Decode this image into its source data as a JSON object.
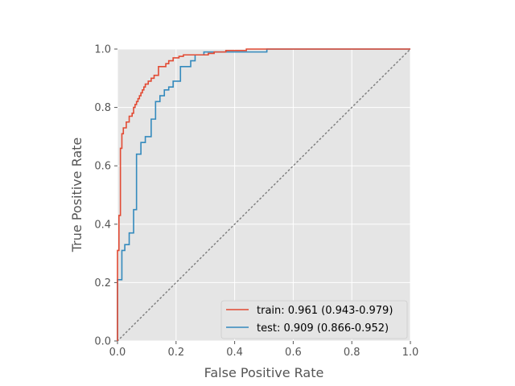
{
  "chart_data": {
    "type": "line",
    "title": "",
    "xlabel": "False Positive Rate",
    "ylabel": "True Positive Rate",
    "xlim": [
      0,
      1
    ],
    "ylim": [
      0,
      1
    ],
    "x_ticks": [
      "0.0",
      "0.2",
      "0.4",
      "0.6",
      "0.8",
      "1.0"
    ],
    "y_ticks": [
      "0.0",
      "0.2",
      "0.4",
      "0.6",
      "0.8",
      "1.0"
    ],
    "grid": true,
    "style": "ggplot",
    "legend_position": "lower-right",
    "colors": {
      "panel_bg": "#e5e5e5",
      "grid": "#ffffff",
      "train": "#e24a33",
      "test": "#348abd",
      "chance": "#808080",
      "text": "#555555"
    },
    "series": [
      {
        "name": "train: 0.961 (0.943-0.979)",
        "color": "#e24a33",
        "x": [
          0.0,
          0.0,
          0.005,
          0.005,
          0.01,
          0.01,
          0.015,
          0.015,
          0.02,
          0.02,
          0.03,
          0.03,
          0.04,
          0.04,
          0.05,
          0.05,
          0.055,
          0.055,
          0.06,
          0.06,
          0.065,
          0.065,
          0.07,
          0.07,
          0.075,
          0.075,
          0.08,
          0.08,
          0.085,
          0.085,
          0.09,
          0.09,
          0.095,
          0.095,
          0.105,
          0.105,
          0.115,
          0.115,
          0.125,
          0.125,
          0.14,
          0.14,
          0.165,
          0.165,
          0.175,
          0.175,
          0.19,
          0.19,
          0.21,
          0.21,
          0.225,
          0.225,
          0.31,
          0.31,
          0.33,
          0.33,
          0.37,
          0.37,
          0.44,
          0.44,
          0.51,
          0.51,
          1.0
        ],
        "y": [
          0.0,
          0.31,
          0.31,
          0.43,
          0.43,
          0.66,
          0.66,
          0.71,
          0.71,
          0.73,
          0.73,
          0.75,
          0.75,
          0.77,
          0.77,
          0.78,
          0.78,
          0.8,
          0.8,
          0.81,
          0.81,
          0.82,
          0.82,
          0.83,
          0.83,
          0.84,
          0.84,
          0.85,
          0.85,
          0.86,
          0.86,
          0.87,
          0.87,
          0.88,
          0.88,
          0.89,
          0.89,
          0.9,
          0.9,
          0.91,
          0.91,
          0.94,
          0.94,
          0.95,
          0.95,
          0.96,
          0.96,
          0.97,
          0.97,
          0.975,
          0.975,
          0.98,
          0.98,
          0.985,
          0.985,
          0.99,
          0.99,
          0.995,
          0.995,
          1.0,
          1.0,
          1.0,
          1.0
        ]
      },
      {
        "name": "test: 0.909 (0.866-0.952)",
        "color": "#348abd",
        "x": [
          0.0,
          0.0,
          0.015,
          0.015,
          0.025,
          0.025,
          0.04,
          0.04,
          0.055,
          0.055,
          0.065,
          0.065,
          0.08,
          0.08,
          0.095,
          0.095,
          0.115,
          0.115,
          0.13,
          0.13,
          0.145,
          0.145,
          0.16,
          0.16,
          0.175,
          0.175,
          0.19,
          0.19,
          0.215,
          0.215,
          0.25,
          0.25,
          0.265,
          0.265,
          0.295,
          0.295,
          0.32,
          0.32,
          0.51,
          0.51,
          1.0
        ],
        "y": [
          0.0,
          0.21,
          0.21,
          0.31,
          0.31,
          0.33,
          0.33,
          0.37,
          0.37,
          0.45,
          0.45,
          0.64,
          0.64,
          0.68,
          0.68,
          0.7,
          0.7,
          0.76,
          0.76,
          0.82,
          0.82,
          0.84,
          0.84,
          0.86,
          0.86,
          0.87,
          0.87,
          0.89,
          0.89,
          0.94,
          0.94,
          0.96,
          0.96,
          0.98,
          0.98,
          0.99,
          0.99,
          0.99,
          0.99,
          1.0,
          1.0
        ]
      },
      {
        "name": "",
        "color": "#808080",
        "dashed": true,
        "x": [
          0.0,
          1.0
        ],
        "y": [
          0.0,
          1.0
        ]
      }
    ]
  }
}
